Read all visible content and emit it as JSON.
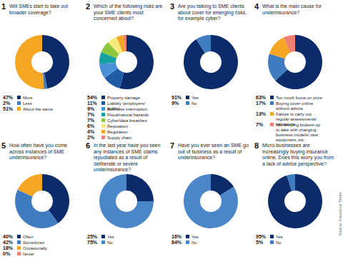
{
  "chart_data": [
    {
      "type": "pie",
      "title": "1 Will SMEs start to take out broader coverage?",
      "categories": [
        "More",
        "Less",
        "About the same"
      ],
      "values": [
        47,
        2,
        51
      ],
      "value_labels": [
        "47%",
        "2%",
        "51%"
      ],
      "colors": [
        "#0b2b6b",
        "#3f7cc0",
        "#f5a623"
      ]
    },
    {
      "type": "pie",
      "title": "2 Which of the following risks are your SME clients most concerned about?",
      "categories": [
        "Property damage",
        "Liability (employers/public)",
        "Business interruption",
        "Flood/natural hazards",
        "Cyber/data breaches",
        "Reputation",
        "Regulation",
        "Supply chain"
      ],
      "values": [
        54,
        11,
        9,
        7,
        7,
        6,
        4,
        2
      ],
      "value_labels": [
        "54%",
        "11%",
        "9%",
        "7%",
        "7%",
        "6%",
        "4%",
        "2%"
      ],
      "colors": [
        "#0b2b6b",
        "#1f5aa6",
        "#4a90d9",
        "#16a0a0",
        "#8cc63e",
        "#f3ea7a",
        "#f5a623",
        "#f07f74"
      ]
    },
    {
      "type": "pie",
      "title": "3 Are you talking to SME clients about cover for emerging risks, for example cyber?",
      "categories": [
        "Yes",
        "No"
      ],
      "values": [
        91,
        9
      ],
      "value_labels": [
        "91%",
        "9%"
      ],
      "colors": [
        "#0b2b6b",
        "#3f7cc0"
      ]
    },
    {
      "type": "pie",
      "title": "4 What is the main cause for underinsurance?",
      "categories": [
        "Too much focus on price",
        "Buying cover online without advice",
        "Failure to carry out regular assessments/valuations",
        "Not keeping brokers up to date with changing business models/ new equipment, etc"
      ],
      "values": [
        63,
        17,
        13,
        7
      ],
      "value_labels": [
        "63%",
        "17%",
        "13%",
        "7%"
      ],
      "colors": [
        "#0b2b6b",
        "#3f7cc0",
        "#f5a623",
        "#f07f74"
      ]
    },
    {
      "type": "pie",
      "title": "5 How often have you come across instances of SME underinsurance?",
      "categories": [
        "Often",
        "Sometimes",
        "Occasionally",
        "Never"
      ],
      "values": [
        40,
        42,
        18,
        0
      ],
      "value_labels": [
        "40%",
        "42%",
        "18%",
        "0%"
      ],
      "colors": [
        "#0b2b6b",
        "#3f7cc0",
        "#f5a623",
        "#f07f74"
      ]
    },
    {
      "type": "pie",
      "title": "6 In the last year have you seen any instances of SME claims repudiated as a result of deliberate or severe underinsurance?",
      "categories": [
        "Yes",
        "No"
      ],
      "values": [
        25,
        75
      ],
      "value_labels": [
        "25%",
        "75%"
      ],
      "colors": [
        "#0b2b6b",
        "#4a86c8"
      ]
    },
    {
      "type": "pie",
      "title": "7 Have you ever seen an SME go out of business as a result of underinsurance?",
      "categories": [
        "Yes",
        "No"
      ],
      "values": [
        16,
        84
      ],
      "value_labels": [
        "16%",
        "84%"
      ],
      "colors": [
        "#0b2b6b",
        "#4a86c8"
      ]
    },
    {
      "type": "pie",
      "title": "8 Micro-businesses are increasingly buying insurance online. Does this worry you from a lack of advice perspective?",
      "categories": [
        "Yes",
        "No"
      ],
      "values": [
        95,
        5
      ],
      "value_labels": [
        "95%",
        "5%"
      ],
      "colors": [
        "#0b2b6b",
        "#3f7cc0"
      ]
    }
  ],
  "source": "Source: Insurance Times"
}
